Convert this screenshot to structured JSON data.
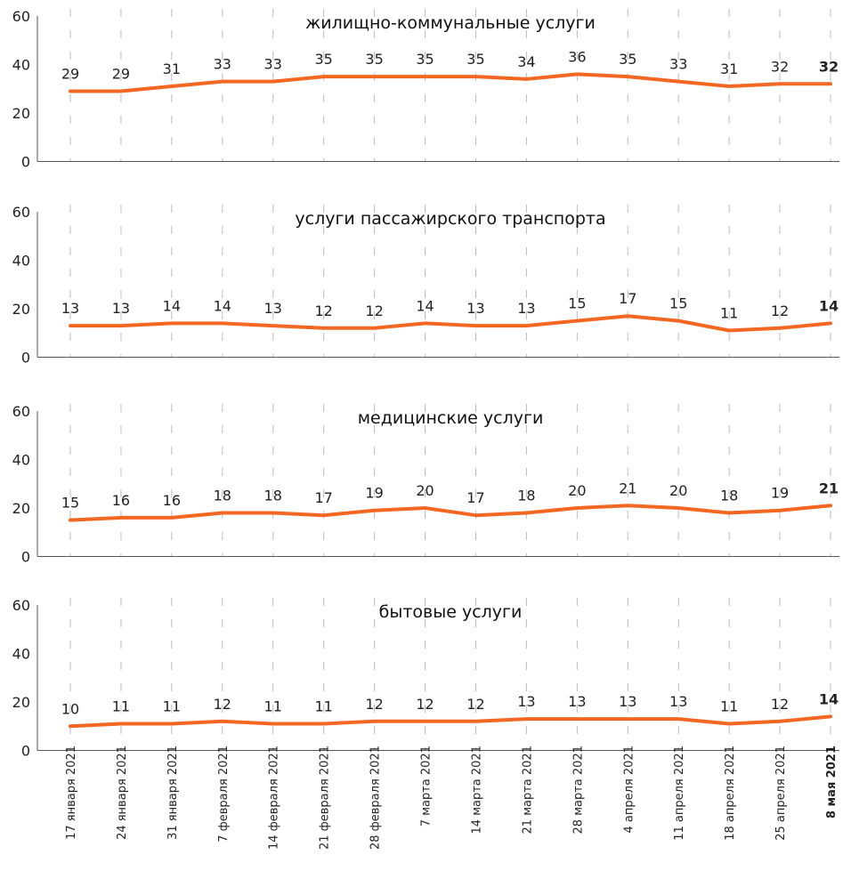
{
  "chart_data": {
    "type": "line",
    "categories": [
      "17 января 2021",
      "24 января 2021",
      "31 января 2021",
      "7 февраля 2021",
      "14 февраля 2021",
      "21 февраля 2021",
      "28 февраля 2021",
      "7 марта 2021",
      "14 марта 2021",
      "21 марта 2021",
      "28 марта 2021",
      "4 апреля 2021",
      "11 апреля 2021",
      "18 апреля 2021",
      "25 апреля 2021",
      "8 мая 2021"
    ],
    "y_ticks": [
      "0",
      "20",
      "40",
      "60"
    ],
    "ylim": [
      0,
      60
    ],
    "line_color": "#f26722",
    "panels": [
      {
        "title": "жилищно-коммунальные услуги",
        "values": [
          29,
          29,
          31,
          33,
          33,
          35,
          35,
          35,
          35,
          34,
          36,
          35,
          33,
          31,
          32,
          32
        ]
      },
      {
        "title": "услуги пассажирского транспорта",
        "values": [
          13,
          13,
          14,
          14,
          13,
          12,
          12,
          14,
          13,
          13,
          15,
          17,
          15,
          11,
          12,
          14
        ]
      },
      {
        "title": "медицинские услуги",
        "values": [
          15,
          16,
          16,
          18,
          18,
          17,
          19,
          20,
          17,
          18,
          20,
          21,
          20,
          18,
          19,
          21
        ]
      },
      {
        "title": "бытовые услуги",
        "values": [
          10,
          11,
          11,
          12,
          11,
          11,
          12,
          12,
          12,
          13,
          13,
          13,
          13,
          11,
          12,
          14
        ]
      }
    ]
  }
}
